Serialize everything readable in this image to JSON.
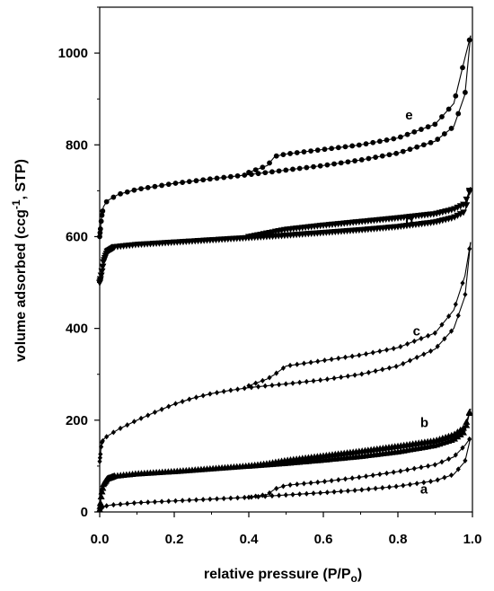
{
  "chart_data": {
    "type": "line",
    "title": "",
    "xlabel": "relative pressure (P/P",
    "xlabel_sub": "o",
    "xlabel_close": ")",
    "ylabel": "volume adsorbed (ccg",
    "ylabel_sup": "-1",
    "ylabel_close": ", STP)",
    "xlim": [
      0,
      1.0
    ],
    "ylim": [
      0,
      1100
    ],
    "xticks": [
      0.0,
      0.2,
      0.4,
      0.6,
      0.8,
      1.0
    ],
    "xtick_labels": [
      "0.0",
      "0.2",
      "0.4",
      "0.6",
      "0.8",
      "1.0"
    ],
    "yticks": [
      0,
      200,
      400,
      600,
      800,
      1000
    ],
    "ytick_labels": [
      "0",
      "200",
      "400",
      "600",
      "800",
      "1000"
    ],
    "grid": false,
    "legend": "none",
    "series": [
      {
        "name": "a",
        "marker": "diamond",
        "label_at": [
          0.86,
          40
        ],
        "adsorption": [
          [
            0.0,
            5
          ],
          [
            0.01,
            12
          ],
          [
            0.03,
            15
          ],
          [
            0.1,
            20
          ],
          [
            0.2,
            24
          ],
          [
            0.3,
            28
          ],
          [
            0.4,
            32
          ],
          [
            0.5,
            37
          ],
          [
            0.6,
            42
          ],
          [
            0.7,
            48
          ],
          [
            0.8,
            56
          ],
          [
            0.9,
            68
          ],
          [
            0.95,
            82
          ],
          [
            0.98,
            110
          ],
          [
            0.995,
            162
          ]
        ],
        "desorption": [
          [
            0.995,
            162
          ],
          [
            0.98,
            145
          ],
          [
            0.95,
            120
          ],
          [
            0.9,
            103
          ],
          [
            0.8,
            88
          ],
          [
            0.7,
            76
          ],
          [
            0.6,
            66
          ],
          [
            0.5,
            58
          ],
          [
            0.47,
            50
          ],
          [
            0.45,
            38
          ],
          [
            0.4,
            32
          ]
        ]
      },
      {
        "name": "b",
        "marker": "triangle",
        "label_at": [
          0.86,
          185
        ],
        "adsorption": [
          [
            0.0,
            5
          ],
          [
            0.005,
            40
          ],
          [
            0.01,
            60
          ],
          [
            0.02,
            72
          ],
          [
            0.04,
            78
          ],
          [
            0.1,
            83
          ],
          [
            0.2,
            88
          ],
          [
            0.3,
            94
          ],
          [
            0.4,
            100
          ],
          [
            0.5,
            106
          ],
          [
            0.6,
            113
          ],
          [
            0.7,
            121
          ],
          [
            0.8,
            131
          ],
          [
            0.9,
            145
          ],
          [
            0.95,
            158
          ],
          [
            0.98,
            175
          ],
          [
            0.995,
            225
          ]
        ],
        "desorption": [
          [
            0.995,
            225
          ],
          [
            0.98,
            185
          ],
          [
            0.95,
            168
          ],
          [
            0.9,
            155
          ],
          [
            0.8,
            143
          ],
          [
            0.7,
            132
          ],
          [
            0.6,
            122
          ],
          [
            0.5,
            112
          ],
          [
            0.45,
            105
          ],
          [
            0.4,
            100
          ]
        ]
      },
      {
        "name": "c",
        "marker": "diamond",
        "label_at": [
          0.84,
          385
        ],
        "adsorption": [
          [
            0.0,
            110
          ],
          [
            0.005,
            150
          ],
          [
            0.01,
            158
          ],
          [
            0.02,
            165
          ],
          [
            0.05,
            180
          ],
          [
            0.1,
            200
          ],
          [
            0.15,
            218
          ],
          [
            0.2,
            235
          ],
          [
            0.25,
            248
          ],
          [
            0.3,
            258
          ],
          [
            0.35,
            265
          ],
          [
            0.4,
            271
          ],
          [
            0.5,
            279
          ],
          [
            0.6,
            288
          ],
          [
            0.7,
            300
          ],
          [
            0.8,
            318
          ],
          [
            0.9,
            355
          ],
          [
            0.95,
            400
          ],
          [
            0.98,
            470
          ],
          [
            0.995,
            588
          ]
        ],
        "desorption": [
          [
            0.995,
            588
          ],
          [
            0.98,
            515
          ],
          [
            0.95,
            440
          ],
          [
            0.9,
            390
          ],
          [
            0.8,
            358
          ],
          [
            0.7,
            342
          ],
          [
            0.6,
            330
          ],
          [
            0.5,
            318
          ],
          [
            0.47,
            300
          ],
          [
            0.45,
            290
          ],
          [
            0.4,
            275
          ]
        ]
      },
      {
        "name": "d",
        "marker": "triangle-down",
        "label_at": [
          0.82,
          625
        ],
        "adsorption": [
          [
            0.0,
            500
          ],
          [
            0.005,
            520
          ],
          [
            0.01,
            545
          ],
          [
            0.02,
            568
          ],
          [
            0.04,
            578
          ],
          [
            0.1,
            583
          ],
          [
            0.2,
            588
          ],
          [
            0.3,
            593
          ],
          [
            0.4,
            598
          ],
          [
            0.5,
            603
          ],
          [
            0.6,
            609
          ],
          [
            0.7,
            615
          ],
          [
            0.8,
            622
          ],
          [
            0.9,
            632
          ],
          [
            0.95,
            642
          ],
          [
            0.98,
            655
          ],
          [
            0.995,
            708
          ]
        ],
        "desorption": [
          [
            0.995,
            708
          ],
          [
            0.98,
            672
          ],
          [
            0.95,
            660
          ],
          [
            0.9,
            650
          ],
          [
            0.8,
            641
          ],
          [
            0.7,
            633
          ],
          [
            0.6,
            625
          ],
          [
            0.5,
            616
          ],
          [
            0.45,
            608
          ],
          [
            0.4,
            600
          ]
        ]
      },
      {
        "name": "e",
        "marker": "circle",
        "label_at": [
          0.82,
          855
        ],
        "adsorption": [
          [
            0.0,
            600
          ],
          [
            0.005,
            642
          ],
          [
            0.01,
            665
          ],
          [
            0.02,
            678
          ],
          [
            0.05,
            692
          ],
          [
            0.1,
            703
          ],
          [
            0.2,
            716
          ],
          [
            0.3,
            726
          ],
          [
            0.4,
            735
          ],
          [
            0.5,
            745
          ],
          [
            0.6,
            755
          ],
          [
            0.7,
            767
          ],
          [
            0.8,
            782
          ],
          [
            0.9,
            808
          ],
          [
            0.95,
            840
          ],
          [
            0.98,
            910
          ],
          [
            0.995,
            1038
          ]
        ],
        "desorption": [
          [
            0.995,
            1038
          ],
          [
            0.98,
            990
          ],
          [
            0.95,
            890
          ],
          [
            0.9,
            845
          ],
          [
            0.8,
            815
          ],
          [
            0.7,
            800
          ],
          [
            0.6,
            790
          ],
          [
            0.5,
            780
          ],
          [
            0.47,
            775
          ],
          [
            0.45,
            755
          ],
          [
            0.4,
            740
          ]
        ]
      }
    ]
  }
}
